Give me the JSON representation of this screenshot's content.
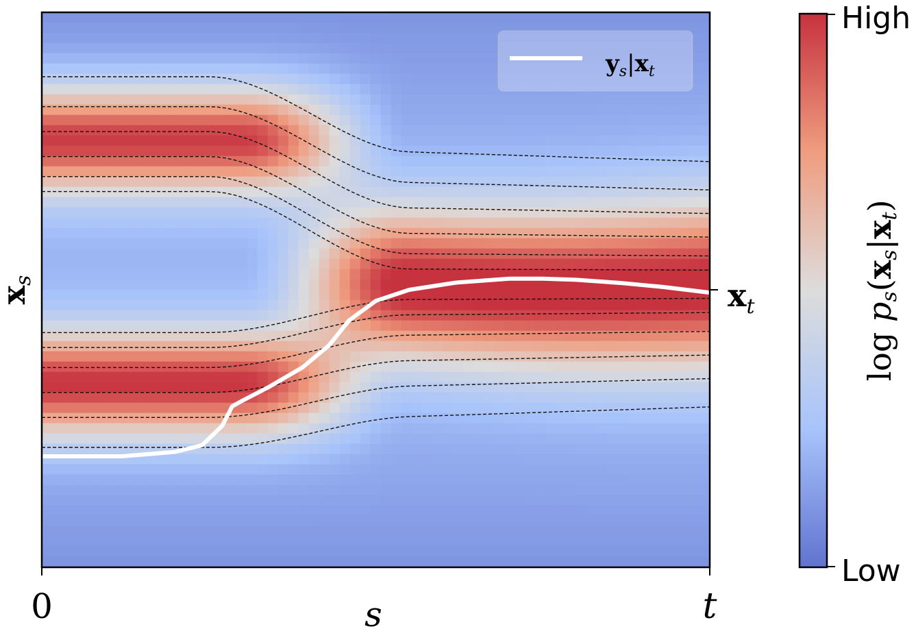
{
  "chart_data": {
    "type": "heatmap",
    "title": "",
    "xlabel": "s",
    "ylabel": "x_s",
    "x_ticks": [
      {
        "label": "0",
        "at": "start"
      },
      {
        "label": "t",
        "at": "end"
      }
    ],
    "y_ticks": [
      {
        "label": "x",
        "sub": "t",
        "value": 0.5
      }
    ],
    "colorbar": {
      "label": "log p_s(x_s|x_t)",
      "ticks": [
        "High",
        "Low"
      ],
      "colormap": "coolwarm",
      "high_color": "#c7323f",
      "low_color": "#6173cf"
    },
    "legend": {
      "placement": "top-right",
      "entries": [
        {
          "label": "y_s|x_t",
          "color": "#ffffff"
        }
      ]
    },
    "grid": false,
    "contours": {
      "style": "dashed",
      "color": "#111111",
      "count": 12
    },
    "modes": [
      {
        "s_range": [
          0.0,
          0.35
        ],
        "x": 0.77
      },
      {
        "s_range": [
          0.0,
          0.35
        ],
        "x": 0.33
      },
      {
        "s_range": [
          0.3,
          1.0
        ],
        "x": 0.51
      }
    ],
    "series": [
      {
        "name": "y_s|x_t",
        "color": "#ffffff",
        "x": [
          0.0,
          0.12,
          0.2,
          0.24,
          0.27,
          0.285,
          0.3,
          0.34,
          0.39,
          0.43,
          0.46,
          0.5,
          0.55,
          0.62,
          0.7,
          0.75,
          0.8,
          0.87,
          0.93,
          1.0
        ],
        "y": [
          0.2,
          0.2,
          0.208,
          0.22,
          0.255,
          0.29,
          0.3,
          0.325,
          0.36,
          0.4,
          0.445,
          0.48,
          0.5,
          0.513,
          0.52,
          0.52,
          0.518,
          0.512,
          0.505,
          0.495
        ]
      }
    ]
  }
}
